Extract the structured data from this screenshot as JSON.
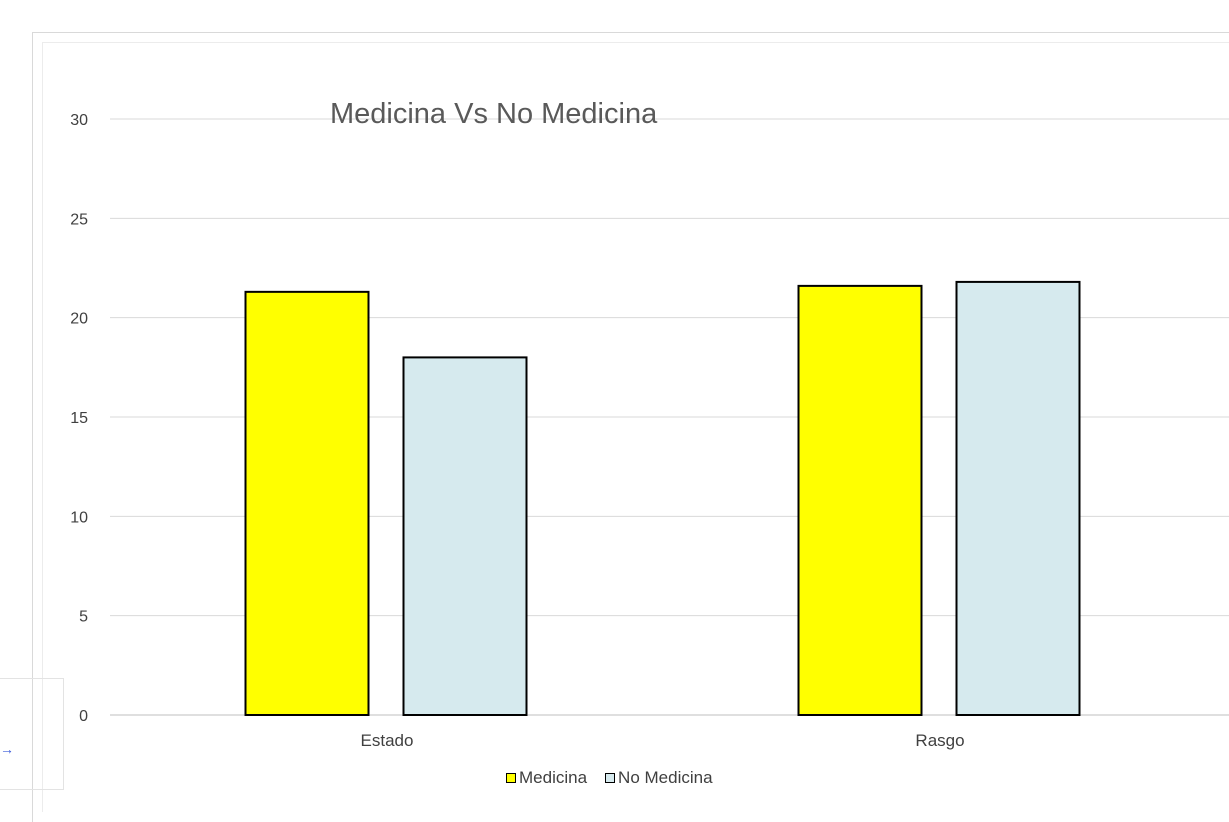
{
  "chart_data": {
    "type": "bar",
    "title": "Medicina Vs No Medicina",
    "xlabel": "",
    "ylabel": "",
    "categories": [
      "Estado",
      "Rasgo"
    ],
    "series": [
      {
        "name": "Medicina",
        "values": [
          21.3,
          21.6
        ],
        "color": "#ffff00"
      },
      {
        "name": "No Medicina",
        "values": [
          18.0,
          21.8
        ],
        "color": "#d6eaee"
      }
    ],
    "ylim": [
      0,
      30
    ],
    "yticks": [
      0,
      5,
      10,
      15,
      20,
      25,
      30
    ],
    "grid": true,
    "legend_position": "bottom",
    "bar_edge_color": "#000000",
    "gridline_color": "#d9d9d9"
  }
}
